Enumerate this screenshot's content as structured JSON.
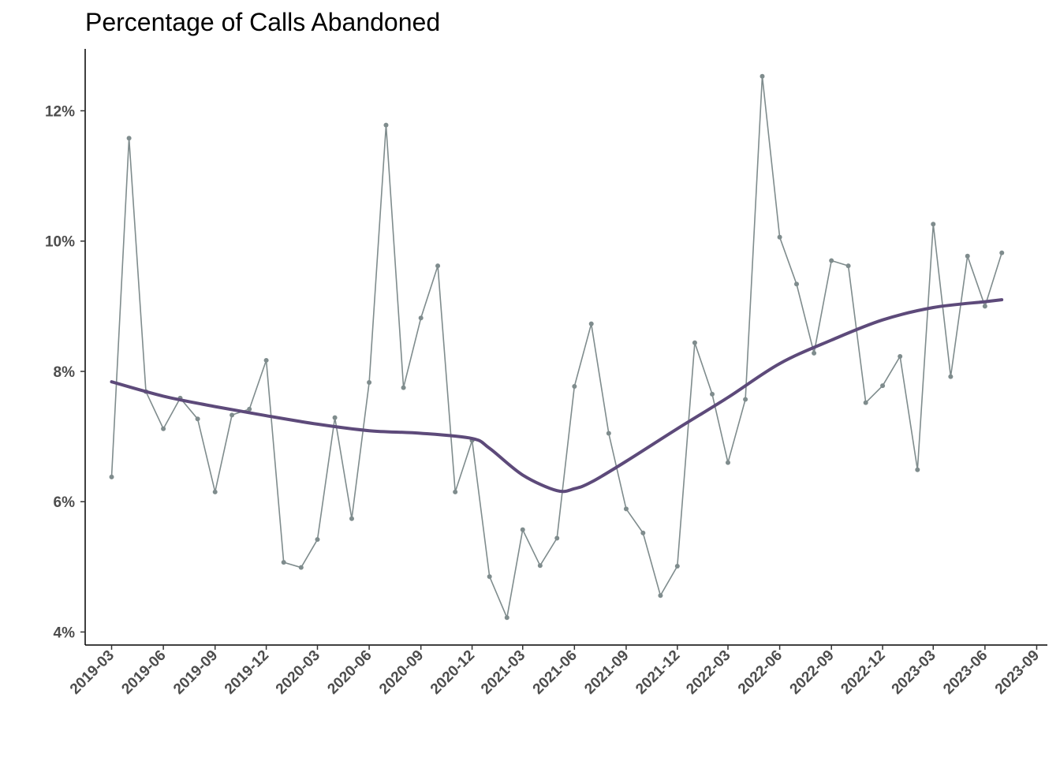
{
  "chart_data": {
    "type": "line",
    "title": "Percentage of Calls Abandoned",
    "xlabel": "",
    "ylabel": "",
    "x_ticks": [
      "2019-03",
      "2019-06",
      "2019-09",
      "2019-12",
      "2020-03",
      "2020-06",
      "2020-09",
      "2020-12",
      "2021-03",
      "2021-06",
      "2021-09",
      "2021-12",
      "2022-03",
      "2022-06",
      "2022-09",
      "2022-12",
      "2023-03",
      "2023-06",
      "2023-09"
    ],
    "y_ticks": [
      "4%",
      "6%",
      "8%",
      "10%",
      "12%"
    ],
    "y_tick_values": [
      4,
      6,
      8,
      10,
      12
    ],
    "ylim": [
      3.8,
      12.95
    ],
    "xlim": [
      "2019-01-13",
      "2023-09-20"
    ],
    "grid": false,
    "series": [
      {
        "kind": "observed",
        "color": "#7f8c8d",
        "x": [
          "2019-03",
          "2019-04",
          "2019-05",
          "2019-06",
          "2019-07",
          "2019-08",
          "2019-09",
          "2019-10",
          "2019-11",
          "2019-12",
          "2020-01",
          "2020-02",
          "2020-03",
          "2020-04",
          "2020-05",
          "2020-06",
          "2020-07",
          "2020-08",
          "2020-09",
          "2020-10",
          "2020-11",
          "2020-12",
          "2021-01",
          "2021-02",
          "2021-03",
          "2021-04",
          "2021-05",
          "2021-06",
          "2021-07",
          "2021-08",
          "2021-09",
          "2021-10",
          "2021-11",
          "2021-12",
          "2022-01",
          "2022-02",
          "2022-03",
          "2022-04",
          "2022-05",
          "2022-06",
          "2022-07",
          "2022-08",
          "2022-09",
          "2022-10",
          "2022-11",
          "2022-12",
          "2023-01",
          "2023-02",
          "2023-03",
          "2023-04",
          "2023-05",
          "2023-06",
          "2023-07"
        ],
        "values": [
          6.38,
          11.58,
          7.69,
          7.12,
          7.59,
          7.27,
          6.15,
          7.33,
          7.42,
          8.17,
          5.07,
          4.99,
          5.42,
          7.29,
          5.74,
          7.83,
          11.78,
          7.75,
          8.82,
          9.62,
          6.15,
          6.94,
          4.85,
          4.22,
          5.57,
          5.02,
          5.44,
          7.77,
          8.73,
          7.05,
          5.89,
          5.52,
          4.56,
          5.01,
          8.44,
          7.65,
          6.6,
          7.57,
          12.53,
          10.06,
          9.34,
          8.28,
          9.7,
          9.62,
          7.52,
          7.78,
          8.23,
          6.49,
          10.26,
          7.92,
          9.77,
          9.0,
          9.82
        ]
      },
      {
        "kind": "smoothed",
        "color": "#5d4a7a",
        "x": [
          "2019-03",
          "2019-06",
          "2019-09",
          "2019-12",
          "2020-03",
          "2020-06",
          "2020-09",
          "2020-12",
          "2021-01",
          "2021-03",
          "2021-05",
          "2021-06",
          "2021-07",
          "2021-09",
          "2021-12",
          "2022-03",
          "2022-06",
          "2022-09",
          "2022-12",
          "2023-03",
          "2023-06",
          "2023-07"
        ],
        "values": [
          7.84,
          7.62,
          7.46,
          7.32,
          7.19,
          7.09,
          7.05,
          6.97,
          6.82,
          6.41,
          6.17,
          6.2,
          6.3,
          6.62,
          7.12,
          7.6,
          8.12,
          8.48,
          8.79,
          8.98,
          9.07,
          9.1
        ]
      }
    ]
  }
}
